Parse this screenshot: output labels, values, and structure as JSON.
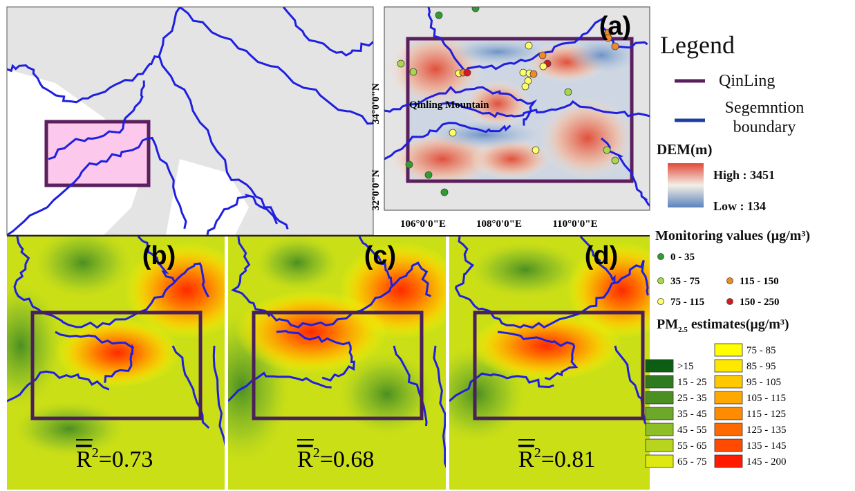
{
  "panel_a": {
    "label": "(a)",
    "mountain_label": "Qinling Mountain",
    "y_ticks": [
      "34°0'0\"N",
      "32°0'0\"N"
    ],
    "x_ticks": [
      "106°0'0\"E",
      "108°0'0\"E",
      "110°0'0\"E"
    ]
  },
  "panels": [
    {
      "label": "(b)",
      "r_symbol": "R",
      "r_exponent": "2",
      "r_value": "=0.73"
    },
    {
      "label": "(c)",
      "r_symbol": "R",
      "r_exponent": "2",
      "r_value": "=0.68"
    },
    {
      "label": "(d)",
      "r_symbol": "R",
      "r_exponent": "2",
      "r_value": "=0.81"
    }
  ],
  "legend": {
    "title": "Legend",
    "qinling": "QinLing",
    "boundary": "Segemntion boundary",
    "dem_title": "DEM(m)",
    "dem_high": "High : 3451",
    "dem_low": "Low : 134",
    "monitoring_title": "Monitoring  values (μg/m³)",
    "monitoring_classes": [
      {
        "label": "0  -  35",
        "color": "#2e9e2e"
      },
      {
        "label": "35  -  75",
        "color": "#a6d84a"
      },
      {
        "label": "75  -  115",
        "color": "#ffff66"
      },
      {
        "label": "115  -  150",
        "color": "#f08a24"
      },
      {
        "label": "150  -  250",
        "color": "#e0141c"
      }
    ],
    "pm_title_main": "PM",
    "pm_title_sub": "2.5",
    "pm_title_rest": " estimates(μg/m³)",
    "pm_classes": [
      {
        "label": ">15",
        "color": "#0b5e12"
      },
      {
        "label": "15 - 25",
        "color": "#2f7a1e"
      },
      {
        "label": "25 - 35",
        "color": "#4b8f22"
      },
      {
        "label": "35 - 45",
        "color": "#6ea82a"
      },
      {
        "label": "45 - 55",
        "color": "#8fbf26"
      },
      {
        "label": "55 - 65",
        "color": "#b7d51c"
      },
      {
        "label": "65 - 75",
        "color": "#dde910"
      },
      {
        "label": "75 - 85",
        "color": "#ffff00"
      },
      {
        "label": "85 - 95",
        "color": "#ffe800"
      },
      {
        "label": "95 - 105",
        "color": "#ffc800"
      },
      {
        "label": "105 - 115",
        "color": "#ffa800"
      },
      {
        "label": "115 - 125",
        "color": "#ff8c00"
      },
      {
        "label": "125 - 135",
        "color": "#ff6a00"
      },
      {
        "label": "135 - 145",
        "color": "#ff4a00"
      },
      {
        "label": "145 - 200",
        "color": "#ff1a00"
      }
    ]
  }
}
